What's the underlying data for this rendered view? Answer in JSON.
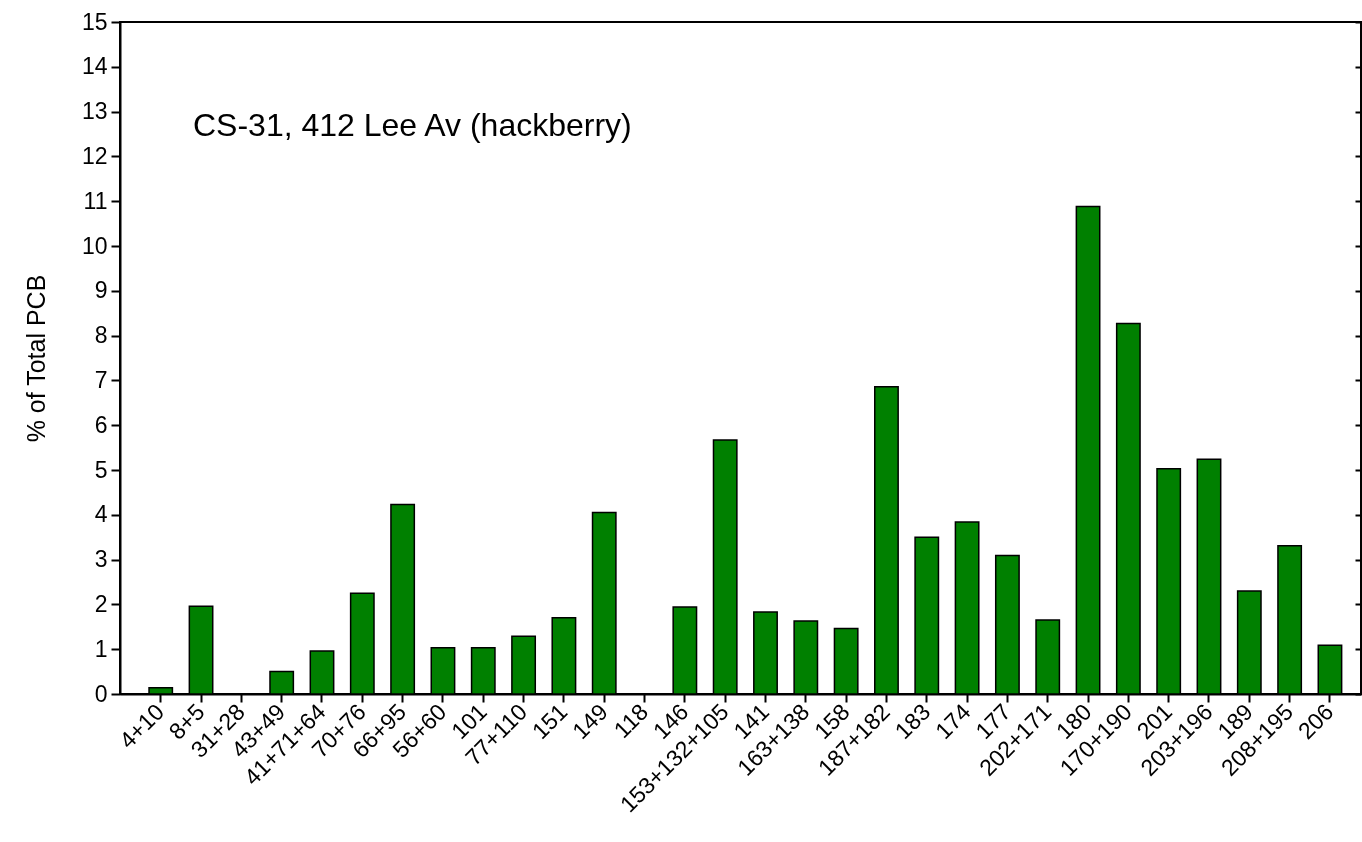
{
  "chart_data": {
    "type": "bar",
    "title": "CS-31, 412 Lee Av (hackberry)",
    "ylabel": "% of Total PCB",
    "categories": [
      "4+10",
      "8+5",
      "31+28",
      "43+49",
      "41+71+64",
      "70+76",
      "66+95",
      "56+60",
      "101",
      "77+110",
      "151",
      "149",
      "118",
      "146",
      "153+132+105",
      "141",
      "163+138",
      "158",
      "187+182",
      "183",
      "174",
      "177",
      "202+171",
      "180",
      "170+190",
      "201",
      "203+196",
      "189",
      "208+195",
      "206"
    ],
    "values": [
      0.14,
      1.96,
      null,
      0.5,
      0.96,
      2.25,
      4.23,
      1.03,
      1.03,
      1.29,
      1.7,
      4.05,
      null,
      1.94,
      5.67,
      1.83,
      1.63,
      1.46,
      6.86,
      3.5,
      3.84,
      3.09,
      1.65,
      10.88,
      8.27,
      5.03,
      5.24,
      2.3,
      3.31,
      1.09
    ],
    "color": "#008000",
    "ylim": [
      0,
      15
    ],
    "yticks": [
      0,
      1,
      2,
      3,
      4,
      5,
      6,
      7,
      8,
      9,
      10,
      11,
      12,
      13,
      14,
      15
    ]
  }
}
